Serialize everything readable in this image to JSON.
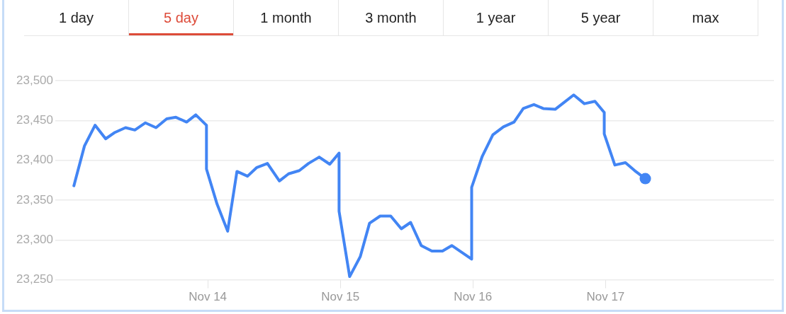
{
  "chart_data": {
    "type": "line",
    "annotations": [
      "1 day",
      "5 day",
      "1 month",
      "3 month",
      "1 year",
      "5 year",
      "max"
    ],
    "x": [
      "--11-12T23:46",
      "--11-13T01:41",
      "--11-13T03:36",
      "--11-13T05:31",
      "--11-13T07:12",
      "--11-13T09:07",
      "--11-13T10:48",
      "--11-13T12:43",
      "--11-13T14:38",
      "--11-13T16:34",
      "--11-13T18:14",
      "--11-13T20:10",
      "--11-13T21:50",
      "--11-13T23:46",
      "--11-13T23:46",
      "--11-14T01:41",
      "--11-14T03:36",
      "--11-14T05:17",
      "--11-14T07:12",
      "--11-14T08:53",
      "--11-14T10:48",
      "--11-14T12:58",
      "--11-14T14:38",
      "--11-14T16:34",
      "--11-14T18:14",
      "--11-14T20:10",
      "--11-14T22:05",
      "--11-14T23:46",
      "--11-14T23:46",
      "--11-15T01:41",
      "--11-15T03:36",
      "--11-15T05:17",
      "--11-15T07:12",
      "--11-15T09:07",
      "--11-15T11:02",
      "--11-15T12:43",
      "--11-15T14:38",
      "--11-15T16:34",
      "--11-15T18:29",
      "--11-15T20:10",
      "--11-15T22:05",
      "--11-15T23:46",
      "--11-15T23:46",
      "--11-16T01:41",
      "--11-16T03:36",
      "--11-16T05:31",
      "--11-16T07:26",
      "--11-16T09:07",
      "--11-16T11:02",
      "--11-16T12:43",
      "--11-16T14:53",
      "--11-16T16:34",
      "--11-16T18:14",
      "--11-16T20:10",
      "--11-16T22:05",
      "--11-16T23:46",
      "--11-16T23:46",
      "--11-17T01:41",
      "--11-17T03:36",
      "--11-17T05:17",
      "--11-17T07:12"
    ],
    "series": [
      {
        "color": "#4285f4",
        "values": [
          23368,
          23418,
          23444,
          23427,
          23435,
          23441,
          23438,
          23447,
          23441,
          23452,
          23454,
          23448,
          23457,
          23444,
          23389,
          23345,
          23311,
          23386,
          23380,
          23391,
          23396,
          23374,
          23383,
          23387,
          23396,
          23404,
          23395,
          23409,
          23336,
          23254,
          23279,
          23321,
          23330,
          23330,
          23314,
          23322,
          23293,
          23286,
          23286,
          23293,
          23284,
          23276,
          23366,
          23405,
          23432,
          23442,
          23448,
          23465,
          23470,
          23465,
          23464,
          23473,
          23482,
          23471,
          23474,
          23460,
          23433,
          23394,
          23397,
          23387,
          23377
        ]
      }
    ],
    "xlim": [
      "--11-12T20:24",
      "--11-18T06:29"
    ],
    "xticks": [
      {
        "value": "--11-14",
        "label": "Nov 14"
      },
      {
        "value": "--11-15",
        "label": "Nov 15"
      },
      {
        "value": "--11-16",
        "label": "Nov 16"
      },
      {
        "value": "--11-17",
        "label": "Nov 17"
      }
    ],
    "ylim": [
      23250,
      23500
    ],
    "yticks": [
      {
        "value": 23250,
        "label": "23,250"
      },
      {
        "value": 23300,
        "label": "23,300"
      },
      {
        "value": 23350,
        "label": "23,350"
      },
      {
        "value": 23400,
        "label": "23,400"
      },
      {
        "value": 23450,
        "label": "23,450"
      },
      {
        "value": 23500,
        "label": "23,500"
      }
    ],
    "grid": "y"
  }
}
